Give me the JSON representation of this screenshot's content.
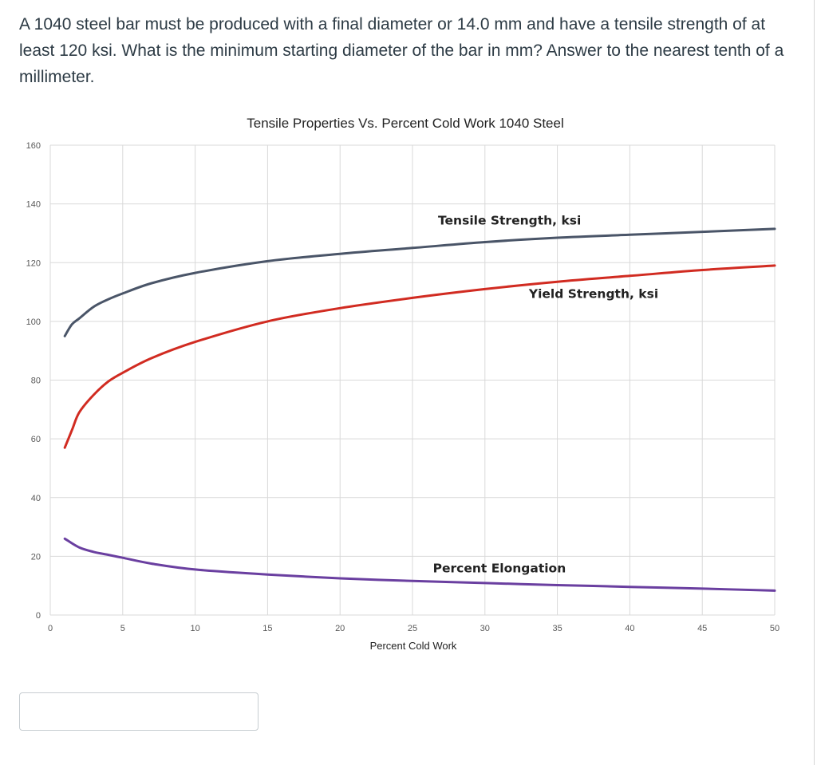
{
  "question": {
    "text": "A 1040 steel bar must be produced with a final diameter or 14.0 mm and have a tensile strength of at least 120 ksi.  What is the minimum starting diameter of the bar in mm?  Answer to the nearest tenth of a millimeter."
  },
  "answer": {
    "value": ""
  },
  "colors": {
    "tensile": "#4a5568",
    "yield": "#d12b21",
    "elongation": "#6a3fa0",
    "grid": "#d9d9d9"
  },
  "chart_data": {
    "type": "line",
    "title": "Tensile Properties Vs. Percent Cold Work 1040 Steel",
    "xlabel": "Percent Cold Work",
    "ylabel": "",
    "xlim": [
      0,
      50
    ],
    "ylim": [
      0,
      160
    ],
    "x_ticks": [
      0,
      5,
      10,
      15,
      20,
      25,
      30,
      35,
      40,
      45,
      50
    ],
    "y_ticks": [
      0,
      20,
      40,
      60,
      80,
      100,
      120,
      140,
      160
    ],
    "grid": true,
    "legend": "none",
    "series": [
      {
        "name": "Tensile Strength, ksi",
        "color": "#4a5568",
        "x": [
          1,
          1.5,
          2,
          3,
          4,
          5,
          7,
          10,
          15,
          20,
          25,
          30,
          35,
          40,
          45,
          50
        ],
        "y": [
          95,
          99,
          101,
          105,
          107.5,
          109.5,
          113,
          116.5,
          120.5,
          123,
          125,
          127,
          128.5,
          129.5,
          130.5,
          131.5
        ]
      },
      {
        "name": "Yield Strength, ksi",
        "color": "#d12b21",
        "x": [
          1,
          1.5,
          2,
          3,
          4,
          5,
          7,
          10,
          15,
          20,
          25,
          30,
          35,
          40,
          45,
          50
        ],
        "y": [
          57,
          63,
          69,
          75,
          79.5,
          82.5,
          87.5,
          93,
          100,
          104.5,
          108,
          111,
          113.5,
          115.5,
          117.5,
          119
        ]
      },
      {
        "name": "Percent Elongation",
        "color": "#6a3fa0",
        "x": [
          1,
          2,
          3,
          4,
          5,
          7,
          10,
          15,
          20,
          25,
          30,
          35,
          40,
          45,
          50
        ],
        "y": [
          26,
          23,
          21.5,
          20.5,
          19.5,
          17.5,
          15.5,
          13.8,
          12.5,
          11.6,
          10.9,
          10.2,
          9.6,
          9,
          8.3
        ]
      }
    ],
    "annotations": [
      {
        "text": "Tensile Strength, ksi",
        "x": 31.7,
        "y": 133
      },
      {
        "text": "Yield Strength, ksi",
        "x": 37.5,
        "y": 108
      },
      {
        "text": "Percent Elongation",
        "x": 31,
        "y": 14.5
      }
    ]
  }
}
